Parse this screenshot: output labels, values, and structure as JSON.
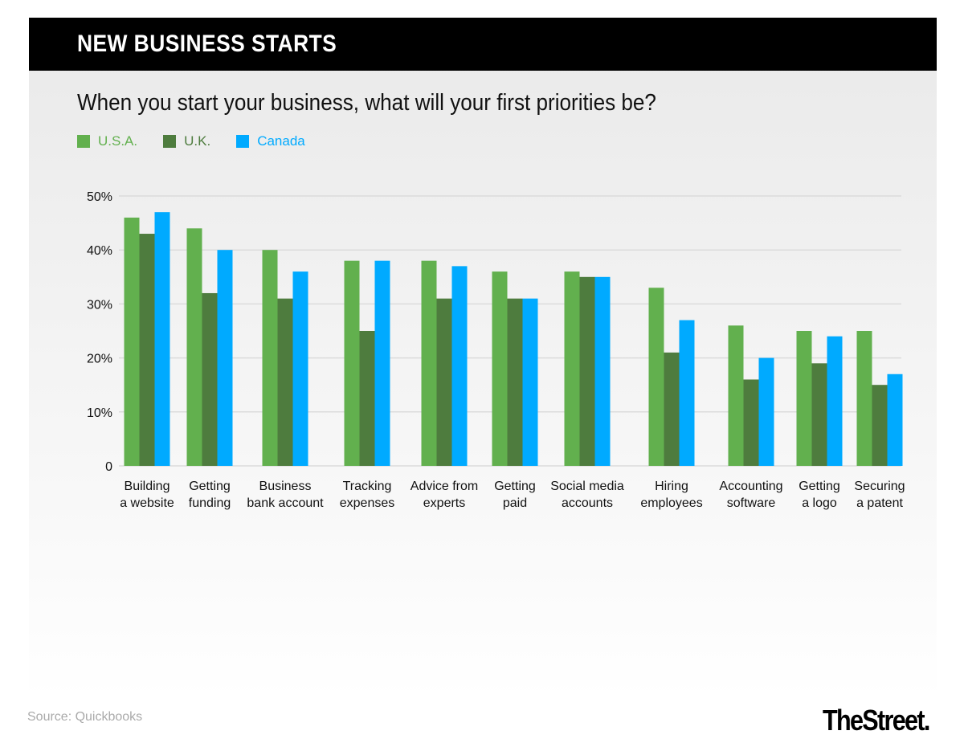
{
  "header": {
    "title": "NEW BUSINESS STARTS"
  },
  "source": "Source: Quickbooks",
  "logo": "TheStreet.",
  "chart_data": {
    "type": "bar",
    "title": "When you start your business, what will your first priorities be?",
    "categories": [
      [
        "Building",
        "a website"
      ],
      [
        "Getting",
        "funding"
      ],
      [
        "Business",
        "bank account"
      ],
      [
        "Tracking",
        "expenses"
      ],
      [
        "Advice from",
        "experts"
      ],
      [
        "Getting",
        "paid"
      ],
      [
        "Social media",
        "accounts"
      ],
      [
        "Hiring",
        "employees"
      ],
      [
        "Accounting",
        "software"
      ],
      [
        "Getting",
        "a logo"
      ],
      [
        "Securing",
        "a patent"
      ]
    ],
    "series": [
      {
        "name": "U.S.A.",
        "color": "#62b04e",
        "values": [
          46,
          44,
          40,
          38,
          38,
          36,
          36,
          33,
          26,
          25,
          25
        ]
      },
      {
        "name": "U.K.",
        "color": "#4e7c3e",
        "values": [
          43,
          32,
          31,
          25,
          31,
          31,
          35,
          21,
          16,
          19,
          15
        ]
      },
      {
        "name": "Canada",
        "color": "#00aaff",
        "values": [
          47,
          40,
          36,
          38,
          37,
          31,
          35,
          27,
          20,
          24,
          17
        ]
      }
    ],
    "ylim": [
      0,
      50
    ],
    "yticks": [
      {
        "v": 0,
        "label": "0"
      },
      {
        "v": 10,
        "label": "10%"
      },
      {
        "v": 20,
        "label": "20%"
      },
      {
        "v": 30,
        "label": "30%"
      },
      {
        "v": 40,
        "label": "40%"
      },
      {
        "v": 50,
        "label": "50%"
      }
    ],
    "grid": true,
    "legend": "top-left"
  }
}
